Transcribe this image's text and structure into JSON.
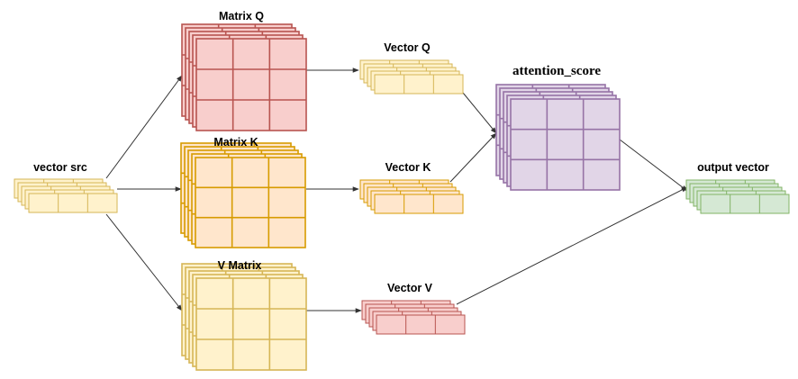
{
  "labels": {
    "vector_src": "vector src",
    "matrix_q": "Matrix Q",
    "matrix_k": "Matrix K",
    "matrix_v": "V Matrix",
    "vector_q": "Vector Q",
    "vector_k": "Vector K",
    "vector_v": "Vector V",
    "attention_score": "attention_score",
    "output_vector": "output vector"
  },
  "colors": {
    "red_fill": "#f8cecc",
    "red_stroke": "#b85450",
    "orange_fill": "#ffe6cc",
    "orange_stroke": "#d79b00",
    "yellow_fill": "#fff2cc",
    "yellow_stroke": "#d6b656",
    "purple_fill": "#e1d5e7",
    "purple_stroke": "#9673a6",
    "green_fill": "#d5e8d4",
    "green_stroke": "#82b366",
    "arrow": "#333333"
  }
}
